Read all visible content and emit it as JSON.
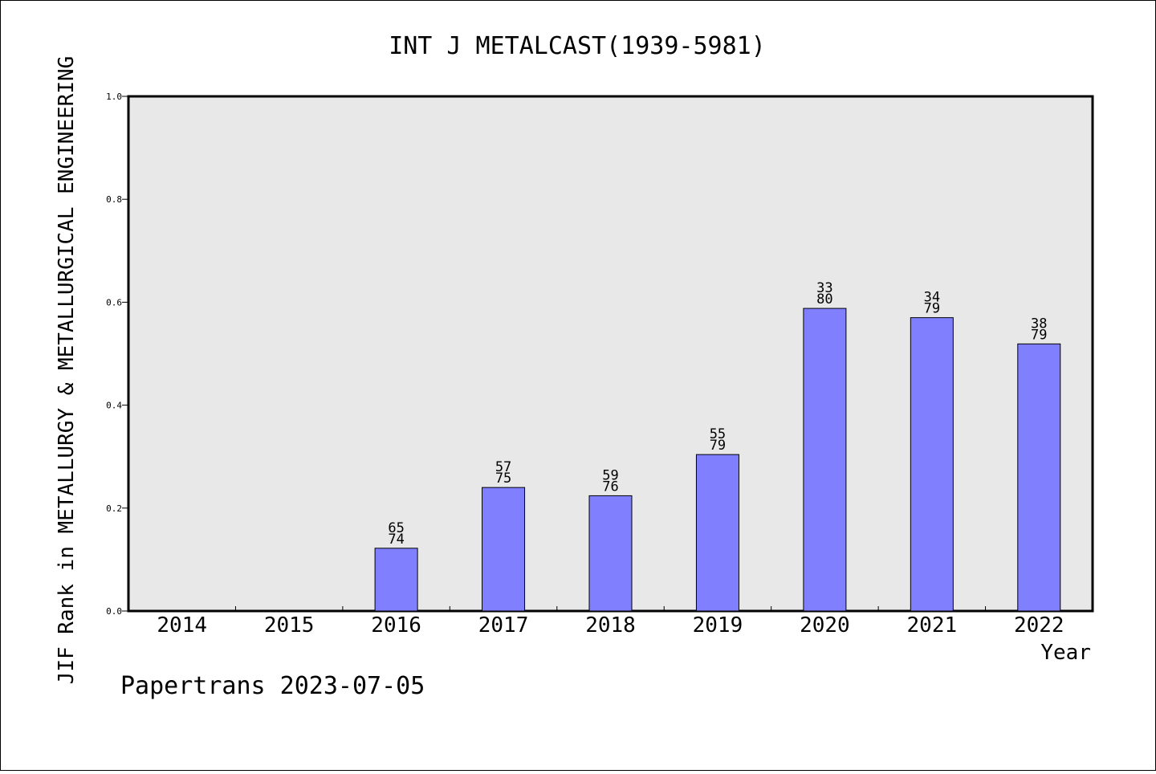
{
  "chart_data": {
    "type": "bar",
    "title": "INT J METALCAST(1939-5981)",
    "xlabel": "Year",
    "ylabel": "JIF Rank in METALLURGY & METALLURGICAL ENGINEERING",
    "ylim": [
      0,
      1.0
    ],
    "yticks": [
      "0.0",
      "0.2",
      "0.4",
      "0.6",
      "0.8",
      "1.0"
    ],
    "ytick_values": [
      0,
      0.2,
      0.4,
      0.6,
      0.8,
      1.0
    ],
    "categories": [
      "2014",
      "2015",
      "2016",
      "2017",
      "2018",
      "2019",
      "2020",
      "2021",
      "2022"
    ],
    "values": [
      null,
      null,
      0.122,
      0.24,
      0.224,
      0.304,
      0.588,
      0.57,
      0.519
    ],
    "rank_labels": [
      null,
      null,
      "65",
      "57",
      "59",
      "55",
      "33",
      "34",
      "38"
    ],
    "total_labels": [
      null,
      null,
      "74",
      "75",
      "76",
      "79",
      "80",
      "79",
      "79"
    ],
    "grid": false,
    "colors": {
      "bar_fill": "#8080ff",
      "plot_background": "#e8e8e8",
      "axis": "#000000"
    }
  },
  "footer": {
    "credit": "Papertrans 2023-07-05"
  }
}
